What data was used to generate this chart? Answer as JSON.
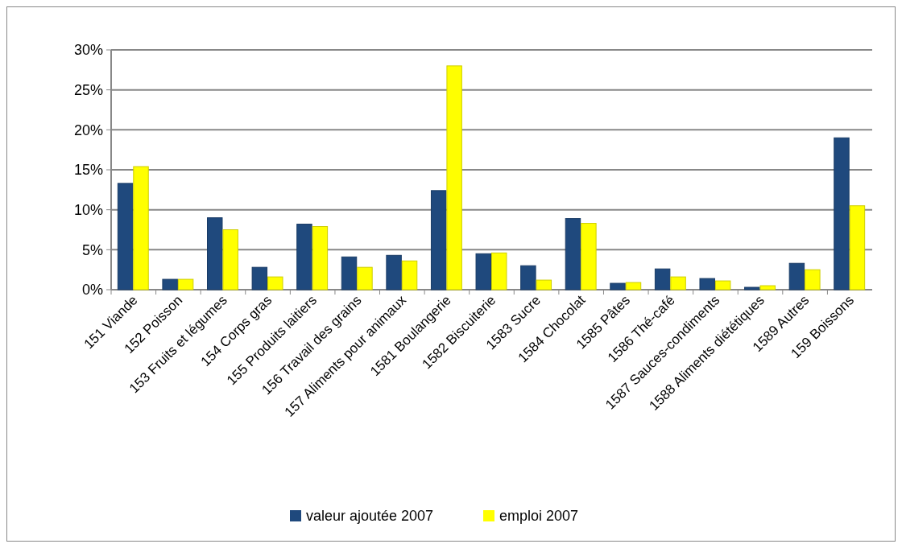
{
  "chart_data": {
    "type": "bar",
    "categories": [
      "151 Viande",
      "152 Poisson",
      "153 Fruits et légumes",
      "154 Corps gras",
      "155 Produits laitiers",
      "156 Travail des grains",
      "157 Aliments pour animaux",
      "1581 Boulangerie",
      "1582 Biscuiterie",
      "1583 Sucre",
      "1584 Chocolat",
      "1585 Pâtes",
      "1586 Thé-café",
      "1587 Sauces-condiments",
      "1588 Aliments diététiques",
      "1589 Autres",
      "159 Boissons"
    ],
    "series": [
      {
        "name": "valeur ajoutée 2007",
        "color": "#1f497d",
        "values": [
          13.3,
          1.3,
          9.0,
          2.8,
          8.2,
          4.1,
          4.3,
          12.4,
          4.5,
          3.0,
          8.9,
          0.8,
          2.6,
          1.4,
          0.3,
          3.3,
          19.0
        ]
      },
      {
        "name": "emploi 2007",
        "color": "#ffff00",
        "values": [
          15.4,
          1.3,
          7.5,
          1.6,
          7.9,
          2.8,
          3.6,
          28.0,
          4.6,
          1.2,
          8.3,
          0.9,
          1.6,
          1.1,
          0.5,
          2.5,
          10.5
        ]
      }
    ],
    "ylim": [
      0,
      30
    ],
    "yticks": [
      {
        "value": 0,
        "label": "0%"
      },
      {
        "value": 5,
        "label": "5%"
      },
      {
        "value": 10,
        "label": "10%"
      },
      {
        "value": 15,
        "label": "15%"
      },
      {
        "value": 20,
        "label": "20%"
      },
      {
        "value": 25,
        "label": "25%"
      },
      {
        "value": 30,
        "label": "30%"
      }
    ],
    "grid": "y",
    "legend": "bottom"
  }
}
